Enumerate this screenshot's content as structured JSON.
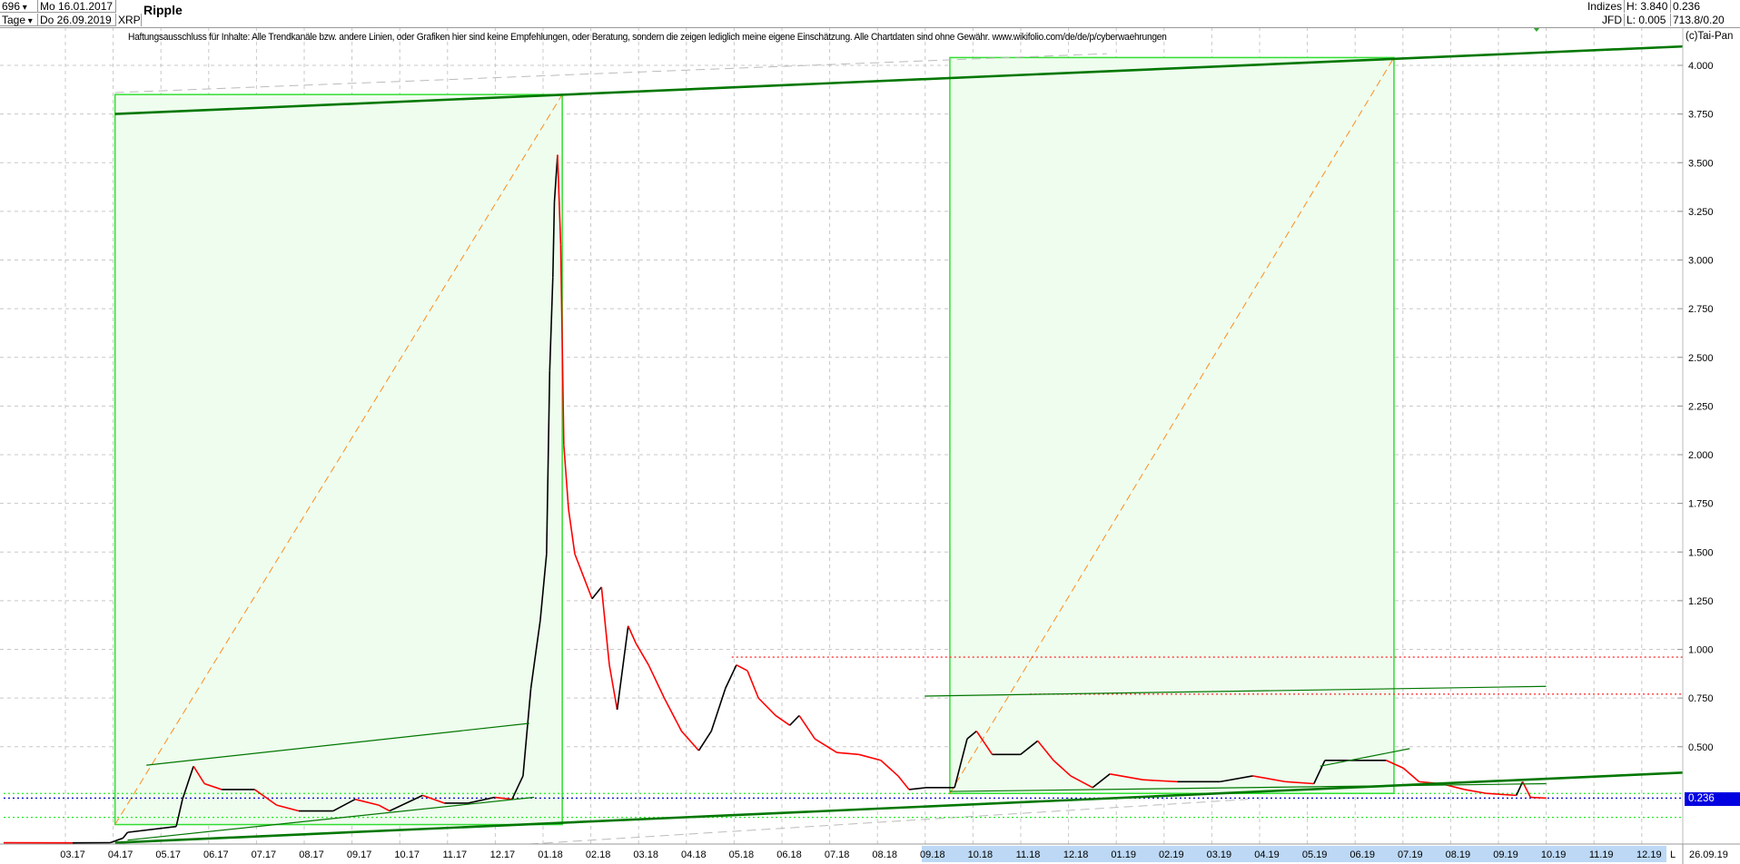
{
  "header": {
    "count": "696",
    "period": "Tage",
    "start_date": "Mo 16.01.2017",
    "end_date": "Do 26.09.2019",
    "symbol": "XRP",
    "title": "Ripple",
    "index_label": "Indizes",
    "exchange": "JFD",
    "high": "H: 3.840",
    "low": "L: 0.005",
    "last": "0.236",
    "extra": "713.8/0.20"
  },
  "disclaimer": "Haftungsausschluss für Inhalte: Alle Trendkanäle bzw. andere Linien, oder Grafiken hier sind keine Empfehlungen, oder Beratung, sondern die zeigen lediglich meine eigene Einschätzung. Alle Chartdaten sind ohne Gewähr.  www.wikifolio.com/de/de/p/cyberwaehrungen",
  "copyright": "(c)Tai-Pan",
  "price_label": "0.236",
  "axis_corner": "L",
  "axis_end_date": "26.09.19",
  "colors": {
    "up": "#000000",
    "down": "#ff0000",
    "box_fill": "#effdee",
    "box_stroke": "#33dd33",
    "trend": "#007700",
    "fib": "#ff8c1a",
    "price_label_bg": "#0000e0",
    "axis_highlight": "#bcd8f5"
  },
  "chart_data": {
    "type": "line",
    "ylim": [
      0,
      4.1
    ],
    "y_ticks": [
      "0.500",
      "0.750",
      "1.000",
      "1.250",
      "1.500",
      "1.750",
      "2.000",
      "2.250",
      "2.500",
      "2.750",
      "3.000",
      "3.250",
      "3.500",
      "3.750",
      "4.000"
    ],
    "x_ticks": [
      "03.17",
      "04.17",
      "05.17",
      "06.17",
      "07.17",
      "08.17",
      "09.17",
      "10.17",
      "11.17",
      "12.17",
      "01.18",
      "02.18",
      "03.18",
      "04.18",
      "05.18",
      "06.18",
      "07.18",
      "08.18",
      "09.18",
      "10.18",
      "11.18",
      "12.18",
      "01.19",
      "02.19",
      "03.19",
      "04.19",
      "05.19",
      "06.19",
      "07.19",
      "08.19",
      "09.19",
      "10.19",
      "11.19",
      "12.19"
    ],
    "grid": true,
    "series": [
      {
        "points": [
          [
            "2017-01-16",
            0.0065
          ],
          [
            "2017-03-01",
            0.006
          ],
          [
            "2017-03-25",
            0.007
          ],
          [
            "2017-04-02",
            0.03
          ],
          [
            "2017-04-05",
            0.06
          ],
          [
            "2017-05-06",
            0.09
          ],
          [
            "2017-05-10",
            0.23
          ],
          [
            "2017-05-17",
            0.4
          ],
          [
            "2017-05-24",
            0.31
          ],
          [
            "2017-06-04",
            0.28
          ],
          [
            "2017-06-25",
            0.28
          ],
          [
            "2017-07-09",
            0.2
          ],
          [
            "2017-07-23",
            0.17
          ],
          [
            "2017-08-14",
            0.17
          ],
          [
            "2017-08-28",
            0.23
          ],
          [
            "2017-09-12",
            0.2
          ],
          [
            "2017-09-19",
            0.17
          ],
          [
            "2017-10-10",
            0.25
          ],
          [
            "2017-10-24",
            0.21
          ],
          [
            "2017-11-08",
            0.21
          ],
          [
            "2017-11-25",
            0.24
          ],
          [
            "2017-12-06",
            0.23
          ],
          [
            "2017-12-13",
            0.35
          ],
          [
            "2017-12-18",
            0.8
          ],
          [
            "2017-12-24",
            1.15
          ],
          [
            "2017-12-28",
            1.49
          ],
          [
            "2017-12-30",
            2.43
          ],
          [
            "2018-01-01",
            2.91
          ],
          [
            "2018-01-02",
            3.3
          ],
          [
            "2018-01-04",
            3.54
          ],
          [
            "2018-01-06",
            3.08
          ],
          [
            "2018-01-08",
            2.05
          ],
          [
            "2018-01-11",
            1.72
          ],
          [
            "2018-01-15",
            1.49
          ],
          [
            "2018-01-26",
            1.26
          ],
          [
            "2018-02-01",
            1.32
          ],
          [
            "2018-02-06",
            0.92
          ],
          [
            "2018-02-11",
            0.69
          ],
          [
            "2018-02-18",
            1.12
          ],
          [
            "2018-02-23",
            1.03
          ],
          [
            "2018-03-03",
            0.92
          ],
          [
            "2018-03-13",
            0.75
          ],
          [
            "2018-03-24",
            0.58
          ],
          [
            "2018-04-04",
            0.48
          ],
          [
            "2018-04-12",
            0.58
          ],
          [
            "2018-04-21",
            0.8
          ],
          [
            "2018-04-28",
            0.92
          ],
          [
            "2018-05-05",
            0.89
          ],
          [
            "2018-05-12",
            0.75
          ],
          [
            "2018-05-23",
            0.66
          ],
          [
            "2018-06-01",
            0.61
          ],
          [
            "2018-06-07",
            0.66
          ],
          [
            "2018-06-17",
            0.54
          ],
          [
            "2018-07-01",
            0.47
          ],
          [
            "2018-07-15",
            0.46
          ],
          [
            "2018-07-29",
            0.43
          ],
          [
            "2018-08-09",
            0.35
          ],
          [
            "2018-08-16",
            0.28
          ],
          [
            "2018-08-27",
            0.29
          ],
          [
            "2018-09-14",
            0.29
          ],
          [
            "2018-09-22",
            0.54
          ],
          [
            "2018-09-28",
            0.58
          ],
          [
            "2018-10-08",
            0.46
          ],
          [
            "2018-10-26",
            0.46
          ],
          [
            "2018-11-06",
            0.53
          ],
          [
            "2018-11-16",
            0.43
          ],
          [
            "2018-11-27",
            0.35
          ],
          [
            "2018-12-11",
            0.29
          ],
          [
            "2018-12-22",
            0.36
          ],
          [
            "2019-01-12",
            0.33
          ],
          [
            "2019-02-03",
            0.32
          ],
          [
            "2019-03-02",
            0.32
          ],
          [
            "2019-03-23",
            0.35
          ],
          [
            "2019-04-13",
            0.32
          ],
          [
            "2019-05-01",
            0.31
          ],
          [
            "2019-05-08",
            0.43
          ],
          [
            "2019-05-26",
            0.43
          ],
          [
            "2019-06-16",
            0.43
          ],
          [
            "2019-06-27",
            0.39
          ],
          [
            "2019-07-07",
            0.32
          ],
          [
            "2019-07-21",
            0.31
          ],
          [
            "2019-08-05",
            0.28
          ],
          [
            "2019-08-19",
            0.26
          ],
          [
            "2019-09-07",
            0.25
          ],
          [
            "2019-09-11",
            0.32
          ],
          [
            "2019-09-16",
            0.24
          ],
          [
            "2019-09-26",
            0.236
          ]
        ]
      }
    ],
    "annotations": {
      "boxes": [
        {
          "from": [
            "2017-03-28",
            0.1
          ],
          "to": [
            "2018-01-07",
            3.85
          ]
        },
        {
          "from": [
            "2018-09-11",
            0.26
          ],
          "to": [
            "2019-06-21",
            4.04
          ]
        }
      ],
      "trendlines": [
        {
          "from": [
            "2017-03-28",
            3.75
          ],
          "to": [
            "2020-01-28",
            4.11
          ],
          "style": "thick"
        },
        {
          "from": [
            "2017-03-28",
            0.0065
          ],
          "to": [
            "2020-01-28",
            0.38
          ],
          "style": "thick"
        },
        {
          "from": [
            "2017-04-17",
            0.405
          ],
          "to": [
            "2017-12-17",
            0.62
          ],
          "style": "thin"
        },
        {
          "from": [
            "2017-04-05",
            0.02
          ],
          "to": [
            "2017-12-20",
            0.24
          ],
          "style": "thin"
        },
        {
          "from": [
            "2018-08-26",
            0.76
          ],
          "to": [
            "2019-09-26",
            0.81
          ],
          "style": "thin"
        },
        {
          "from": [
            "2018-09-11",
            0.27
          ],
          "to": [
            "2019-09-26",
            0.31
          ],
          "style": "thin"
        },
        {
          "from": [
            "2019-05-05",
            0.4
          ],
          "to": [
            "2019-07-01",
            0.49
          ],
          "style": "thin"
        }
      ],
      "fib_diagonals": [
        {
          "from": [
            "2017-03-28",
            0.1
          ],
          "to": [
            "2018-01-07",
            3.85
          ]
        },
        {
          "from": [
            "2018-09-11",
            0.26
          ],
          "to": [
            "2019-06-21",
            4.04
          ]
        }
      ],
      "grey_dashed": [
        {
          "from": [
            "2017-03-28",
            3.86
          ],
          "to": [
            "2018-12-20",
            4.06
          ]
        },
        {
          "from": [
            "2017-12-17",
            0.0
          ],
          "to": [
            "2019-03-20",
            0.23
          ]
        }
      ],
      "horizontals": [
        {
          "price": 0.96,
          "from": "2018-04-25",
          "color": "#ff3333"
        },
        {
          "price": 0.77,
          "from": "2018-11-01",
          "color": "#ff3333"
        },
        {
          "price": 0.26,
          "from": "2017-01-16",
          "color": "#22ee22"
        },
        {
          "price": 0.137,
          "from": "2017-01-16",
          "color": "#22ee22"
        },
        {
          "price": 0.236,
          "from": "2017-01-16",
          "color": "#0000cc"
        }
      ]
    }
  }
}
